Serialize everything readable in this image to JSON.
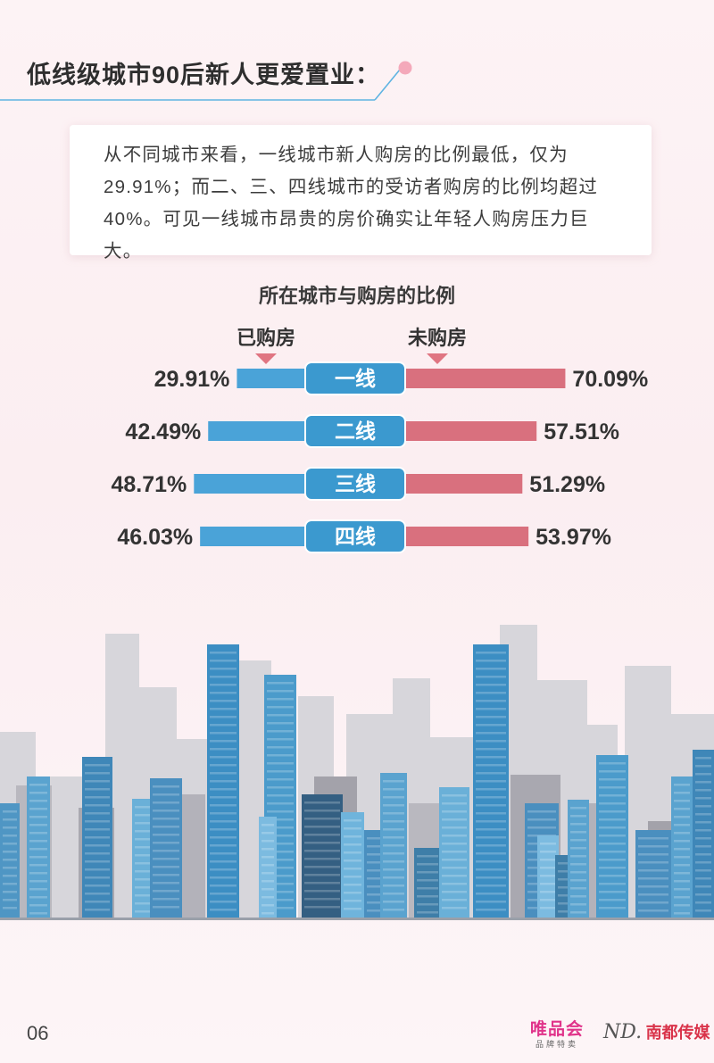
{
  "header": {
    "title": "低线级城市90后新人更爱置业："
  },
  "intro": {
    "text": "从不同城市来看，一线城市新人购房的比例最低，仅为29.91%；而二、三、四线城市的受访者购房的比例均超过40%。可见一线城市昂贵的房价确实让年轻人购房压力巨大。"
  },
  "legend": {
    "purchased": "已购房",
    "not_purchased": "未购房"
  },
  "colors": {
    "purchased": "#4aa3d8",
    "not_purchased": "#d9707e",
    "center_label": "#3b99cf",
    "triangle": "#e07582"
  },
  "chart_data": {
    "type": "bar",
    "title": "所在城市与购房的比例",
    "categories": [
      "一线",
      "二线",
      "三线",
      "四线"
    ],
    "series": [
      {
        "name": "已购房",
        "values": [
          29.91,
          42.49,
          48.71,
          46.03
        ],
        "labels": [
          "29.91%",
          "42.49%",
          "48.71%",
          "46.03%"
        ]
      },
      {
        "name": "未购房",
        "values": [
          70.09,
          57.51,
          51.29,
          53.97
        ],
        "labels": [
          "70.09%",
          "57.51%",
          "51.29%",
          "53.97%"
        ]
      }
    ],
    "unit": "%",
    "ylim": [
      0,
      100
    ],
    "grid": false,
    "legend": "top"
  },
  "footer": {
    "page_number": "06",
    "logo_vip": "唯品会",
    "logo_vip_sub": "品牌特卖",
    "logo_nd_mark": "ND.",
    "logo_nd_text": "南都传媒"
  }
}
